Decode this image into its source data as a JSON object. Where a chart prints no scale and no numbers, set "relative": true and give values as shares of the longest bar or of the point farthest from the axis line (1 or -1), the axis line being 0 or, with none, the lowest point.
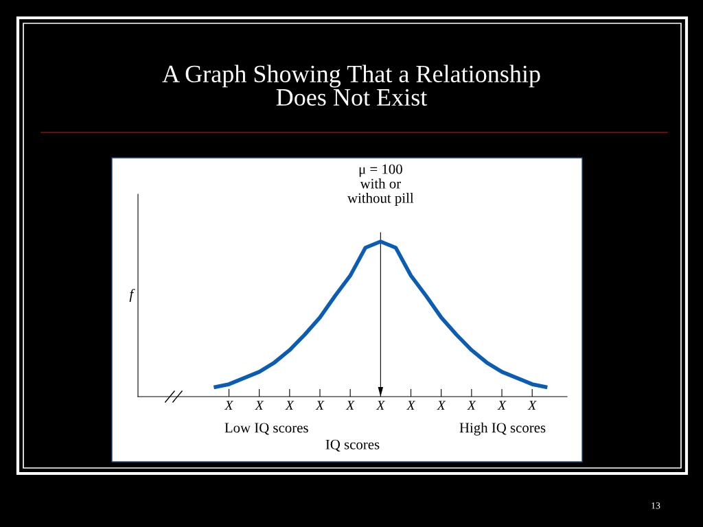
{
  "chart_data": {
    "type": "line",
    "title": "A Graph Showing That a Relationship\nDoes Not Exist",
    "xlabel": "IQ scores",
    "ylabel": "f",
    "relative": true,
    "categories": [
      null,
      "X",
      null,
      "X",
      null,
      "X",
      null,
      "X",
      null,
      "X",
      null,
      "X",
      null,
      "X",
      null,
      "X",
      null,
      "X",
      null,
      "X",
      null,
      "X",
      null
    ],
    "series": [
      {
        "color": "#0b5cb3",
        "values": [
          0.06,
          0.08,
          0.12,
          0.16,
          0.22,
          0.3,
          0.4,
          0.51,
          0.65,
          0.78,
          0.96,
          1,
          0.96,
          0.78,
          0.65,
          0.51,
          0.4,
          0.3,
          0.22,
          0.16,
          0.12,
          0.08,
          0.06
        ]
      }
    ],
    "annotations": [
      "μ = 100\nwith or\nwithout pill",
      "Low IQ scores",
      "High IQ scores",
      "13"
    ],
    "grid": false,
    "marker": "none",
    "line_style": "solid"
  }
}
